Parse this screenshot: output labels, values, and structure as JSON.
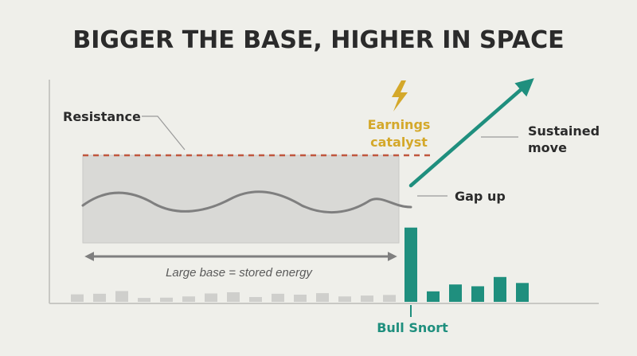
{
  "title": "BIGGER THE BASE, HIGHER IN SPACE",
  "labels": {
    "resistance": "Resistance",
    "earnings_line1": "Earnings",
    "earnings_line2": "catalyst",
    "sustained_line1": "Sustained",
    "sustained_line2": "move",
    "gap_up": "Gap up",
    "base_caption": "Large base = stored energy",
    "bull_snort": "Bull Snort"
  },
  "volume": {
    "base_bars": [
      0.25,
      0.27,
      0.36,
      0.13,
      0.14,
      0.18,
      0.28,
      0.32,
      0.16,
      0.27,
      0.24,
      0.29,
      0.18,
      0.21,
      0.23
    ],
    "breakout_bars": [
      2.48,
      0.35,
      0.58,
      0.52,
      0.83,
      0.63
    ],
    "unit_max": 2.5
  },
  "colors": {
    "title": "#2b2b2b",
    "resistance_line": "#c0573e",
    "base_fill": "#d9d9d6",
    "base_border": "#c9c9c6",
    "price_wave": "#7f7f7f",
    "accent_teal": "#1f8f7e",
    "catalyst_gold": "#d4a82a",
    "volume_gray": "#cfcfcc",
    "axis": "#c8c8c4",
    "leader": "#9a9a9a"
  },
  "icons": {
    "catalyst": "lightning-bolt-icon",
    "move": "arrow-up-right-icon",
    "span": "double-arrow-icon"
  }
}
